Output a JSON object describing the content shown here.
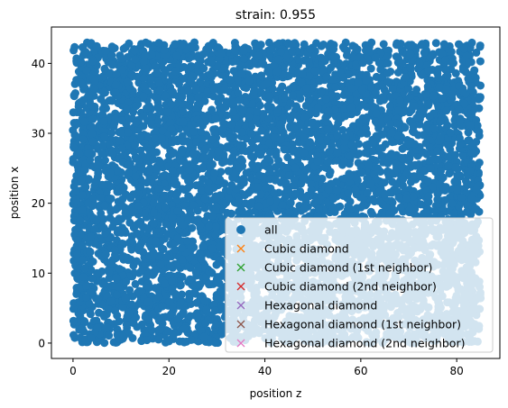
{
  "chart_data": {
    "type": "scatter",
    "title": "strain: 0.955",
    "xlabel": "position z",
    "ylabel": "position x",
    "xlim": [
      -4.5,
      89
    ],
    "ylim": [
      -2.2,
      45.2
    ],
    "xticks": [
      0,
      20,
      40,
      60,
      80
    ],
    "yticks": [
      0,
      10,
      20,
      30,
      40
    ],
    "grid": false,
    "legend_position": "lower right",
    "point_cloud": {
      "description": "dense uniform cloud of atoms",
      "x_range": [
        0,
        85
      ],
      "y_range": [
        0,
        43
      ],
      "approx_count": 6000,
      "color": "#1f77b4"
    },
    "series": [
      {
        "name": "all",
        "marker": "circle",
        "color": "#1f77b4"
      },
      {
        "name": "Cubic diamond",
        "marker": "x",
        "color": "#ff7f0e",
        "points": []
      },
      {
        "name": "Cubic diamond (1st neighbor)",
        "marker": "x",
        "color": "#2ca02c",
        "points": []
      },
      {
        "name": "Cubic diamond (2nd neighbor)",
        "marker": "x",
        "color": "#d62728",
        "points": []
      },
      {
        "name": "Hexagonal diamond",
        "marker": "x",
        "color": "#9467bd",
        "points": []
      },
      {
        "name": "Hexagonal diamond (1st neighbor)",
        "marker": "x",
        "color": "#8c564b",
        "points": []
      },
      {
        "name": "Hexagonal diamond (2nd neighbor)",
        "marker": "x",
        "color": "#e377c2",
        "points": []
      }
    ]
  }
}
